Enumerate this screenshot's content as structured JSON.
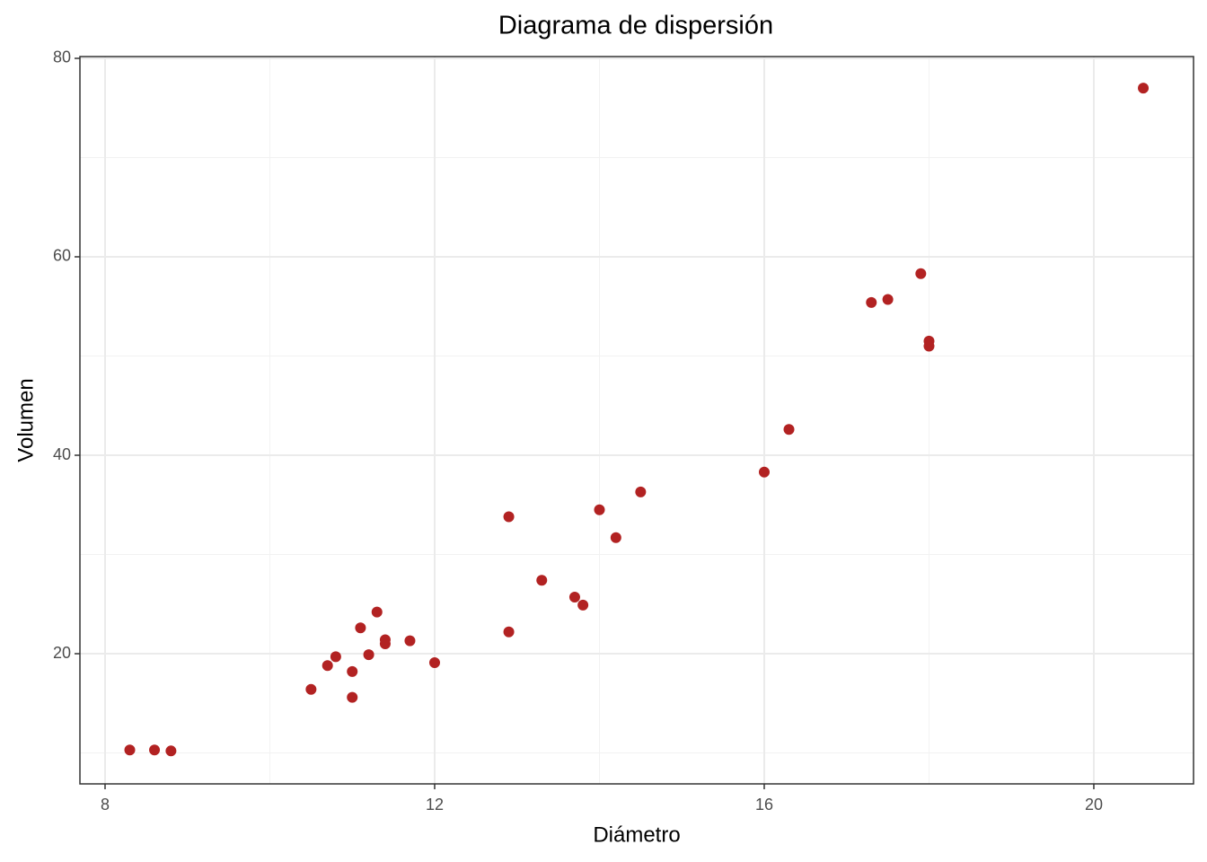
{
  "chart_data": {
    "type": "scatter",
    "title": "Diagrama de dispersión",
    "x_label": "Diámetro",
    "y_label": "Volumen",
    "color": "#b22222",
    "x": [
      8.3,
      8.6,
      8.8,
      10.5,
      10.7,
      10.8,
      11.0,
      11.0,
      11.1,
      11.2,
      11.3,
      11.4,
      11.4,
      11.7,
      12.0,
      12.9,
      12.9,
      13.3,
      13.7,
      13.8,
      14.0,
      14.2,
      14.5,
      16.0,
      16.3,
      17.3,
      17.5,
      17.9,
      18.0,
      18.0,
      20.6
    ],
    "values": [
      10.3,
      10.3,
      10.2,
      16.4,
      18.8,
      19.7,
      15.6,
      18.2,
      22.6,
      19.9,
      24.2,
      21.0,
      21.4,
      21.3,
      19.1,
      22.2,
      33.8,
      27.4,
      25.7,
      24.9,
      34.5,
      31.7,
      36.3,
      38.3,
      42.6,
      55.4,
      55.7,
      58.3,
      51.5,
      51.0,
      77.0
    ],
    "xlim": [
      7.695,
      21.21
    ],
    "ylim": [
      6.88,
      80.18
    ],
    "xticks": [
      8,
      12,
      16,
      20
    ],
    "yticks": [
      20,
      40,
      60,
      80
    ],
    "xminor": [
      10,
      14,
      18
    ],
    "yminor": [
      10,
      30,
      50,
      70
    ],
    "grid": true
  }
}
